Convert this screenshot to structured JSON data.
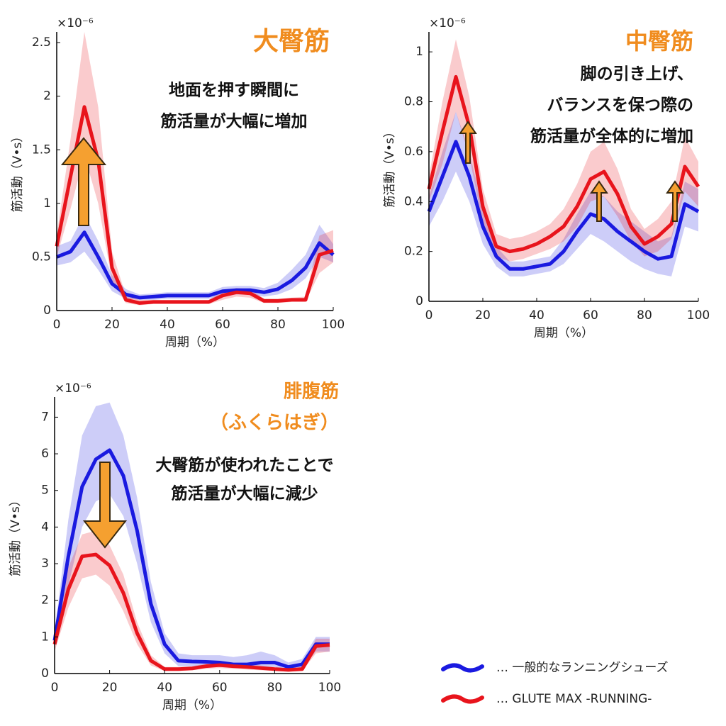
{
  "chart_data": [
    {
      "type": "line",
      "title": "大臀筋",
      "annotations": [
        "地面を押す瞬間に",
        "筋活量が大幅に増加"
      ],
      "x_label": "周期（%）",
      "y_label": "筋活動（V•s）",
      "y_exponent": "×10⁻⁶",
      "x": [
        0,
        5,
        10,
        15,
        20,
        25,
        30,
        35,
        40,
        45,
        50,
        55,
        60,
        65,
        70,
        75,
        80,
        85,
        90,
        95,
        100
      ],
      "xlim": [
        0,
        100
      ],
      "xticks": [
        0,
        20,
        40,
        60,
        80,
        100
      ],
      "ylim": [
        0,
        2.6
      ],
      "yticks": [
        0,
        0.5,
        1,
        1.5,
        2,
        2.5
      ],
      "series": [
        {
          "name": "… 一般的なランニングシューズ",
          "color": "#1a1ae0",
          "values": [
            0.5,
            0.55,
            0.73,
            0.5,
            0.25,
            0.15,
            0.12,
            0.13,
            0.14,
            0.14,
            0.14,
            0.14,
            0.18,
            0.19,
            0.19,
            0.17,
            0.2,
            0.28,
            0.4,
            0.63,
            0.52
          ],
          "lower": [
            0.42,
            0.45,
            0.55,
            0.38,
            0.18,
            0.11,
            0.1,
            0.1,
            0.11,
            0.11,
            0.11,
            0.11,
            0.14,
            0.15,
            0.15,
            0.13,
            0.15,
            0.2,
            0.3,
            0.5,
            0.45
          ],
          "upper": [
            0.6,
            0.65,
            0.9,
            0.65,
            0.33,
            0.2,
            0.15,
            0.16,
            0.17,
            0.17,
            0.17,
            0.17,
            0.22,
            0.23,
            0.23,
            0.21,
            0.26,
            0.38,
            0.52,
            0.8,
            0.62
          ]
        },
        {
          "name": "… GLUTE MAX -RUNNING-",
          "color": "#e8141c",
          "values": [
            0.6,
            1.25,
            1.9,
            1.4,
            0.4,
            0.1,
            0.07,
            0.08,
            0.08,
            0.08,
            0.08,
            0.08,
            0.14,
            0.17,
            0.16,
            0.09,
            0.09,
            0.1,
            0.1,
            0.52,
            0.56
          ],
          "lower": [
            0.5,
            0.95,
            1.45,
            1.0,
            0.28,
            0.07,
            0.05,
            0.06,
            0.06,
            0.06,
            0.06,
            0.06,
            0.1,
            0.13,
            0.12,
            0.07,
            0.07,
            0.08,
            0.08,
            0.35,
            0.45
          ],
          "upper": [
            0.7,
            1.6,
            2.6,
            1.9,
            0.55,
            0.14,
            0.1,
            0.1,
            0.1,
            0.1,
            0.1,
            0.1,
            0.18,
            0.21,
            0.2,
            0.11,
            0.11,
            0.12,
            0.13,
            0.7,
            0.75
          ]
        }
      ]
    },
    {
      "type": "line",
      "title": "中臀筋",
      "annotations": [
        "脚の引き上げ、",
        "バランスを保つ際の",
        "筋活量が全体的に増加"
      ],
      "x_label": "周期（%）",
      "y_label": "筋活動（V•s）",
      "y_exponent": "×10⁻⁶",
      "x": [
        0,
        5,
        10,
        15,
        20,
        25,
        30,
        35,
        40,
        45,
        50,
        55,
        60,
        65,
        70,
        75,
        80,
        85,
        90,
        95,
        100
      ],
      "xlim": [
        0,
        100
      ],
      "xticks": [
        0,
        20,
        40,
        60,
        80,
        100
      ],
      "ylim": [
        0,
        1.08
      ],
      "yticks": [
        0,
        0.2,
        0.4,
        0.6,
        0.8,
        1
      ],
      "series": [
        {
          "color": "#1a1ae0",
          "values": [
            0.36,
            0.5,
            0.64,
            0.5,
            0.3,
            0.18,
            0.13,
            0.13,
            0.14,
            0.15,
            0.2,
            0.28,
            0.35,
            0.33,
            0.28,
            0.24,
            0.2,
            0.17,
            0.18,
            0.39,
            0.36
          ],
          "lower": [
            0.3,
            0.4,
            0.52,
            0.4,
            0.23,
            0.14,
            0.1,
            0.1,
            0.11,
            0.12,
            0.15,
            0.21,
            0.27,
            0.24,
            0.2,
            0.16,
            0.13,
            0.11,
            0.1,
            0.3,
            0.28
          ],
          "upper": [
            0.42,
            0.6,
            0.76,
            0.6,
            0.37,
            0.22,
            0.16,
            0.16,
            0.17,
            0.18,
            0.25,
            0.35,
            0.44,
            0.42,
            0.36,
            0.32,
            0.28,
            0.24,
            0.26,
            0.48,
            0.45
          ]
        },
        {
          "color": "#e8141c",
          "values": [
            0.45,
            0.68,
            0.9,
            0.7,
            0.38,
            0.22,
            0.2,
            0.21,
            0.23,
            0.26,
            0.3,
            0.38,
            0.49,
            0.52,
            0.43,
            0.3,
            0.23,
            0.26,
            0.31,
            0.54,
            0.46
          ],
          "lower": [
            0.4,
            0.55,
            0.76,
            0.58,
            0.31,
            0.18,
            0.16,
            0.17,
            0.19,
            0.21,
            0.24,
            0.3,
            0.4,
            0.42,
            0.34,
            0.24,
            0.18,
            0.2,
            0.25,
            0.44,
            0.38
          ],
          "upper": [
            0.5,
            0.8,
            1.05,
            0.82,
            0.45,
            0.27,
            0.25,
            0.26,
            0.28,
            0.31,
            0.37,
            0.47,
            0.6,
            0.64,
            0.53,
            0.37,
            0.29,
            0.33,
            0.4,
            0.66,
            0.56
          ]
        }
      ]
    },
    {
      "type": "line",
      "title": "腓腹筋",
      "subtitle": "（ふくらはぎ）",
      "annotations": [
        "大臀筋が使われたことで",
        "筋活量が大幅に減少"
      ],
      "x_label": "周期（%）",
      "y_label": "筋活動（V•s）",
      "y_exponent": "×10⁻⁶",
      "x": [
        0,
        5,
        10,
        15,
        20,
        25,
        30,
        35,
        40,
        45,
        50,
        55,
        60,
        65,
        70,
        75,
        80,
        85,
        90,
        95,
        100
      ],
      "xlim": [
        0,
        100
      ],
      "xticks": [
        0,
        20,
        40,
        60,
        80,
        100
      ],
      "ylim": [
        0,
        7.55
      ],
      "yticks": [
        0,
        1,
        2,
        3,
        4,
        5,
        6,
        7
      ],
      "series": [
        {
          "color": "#1a1ae0",
          "values": [
            0.9,
            3.2,
            5.1,
            5.85,
            6.1,
            5.4,
            3.9,
            1.9,
            0.8,
            0.35,
            0.33,
            0.32,
            0.3,
            0.25,
            0.25,
            0.3,
            0.3,
            0.18,
            0.25,
            0.8,
            0.8
          ],
          "lower": [
            0.7,
            2.4,
            4.0,
            4.7,
            4.9,
            4.3,
            3.0,
            1.4,
            0.55,
            0.2,
            0.2,
            0.2,
            0.18,
            0.15,
            0.15,
            0.18,
            0.18,
            0.1,
            0.15,
            0.6,
            0.6
          ],
          "upper": [
            1.1,
            4.2,
            6.5,
            7.3,
            7.4,
            6.5,
            4.8,
            2.5,
            1.1,
            0.55,
            0.5,
            0.5,
            0.5,
            0.45,
            0.5,
            0.6,
            0.5,
            0.3,
            0.4,
            1.0,
            1.0
          ]
        },
        {
          "color": "#e8141c",
          "values": [
            0.8,
            2.3,
            3.2,
            3.25,
            2.95,
            2.2,
            1.1,
            0.35,
            0.12,
            0.12,
            0.14,
            0.2,
            0.23,
            0.2,
            0.18,
            0.15,
            0.12,
            0.1,
            0.12,
            0.75,
            0.78
          ],
          "lower": [
            0.6,
            1.8,
            2.6,
            2.7,
            2.4,
            1.7,
            0.8,
            0.22,
            0.07,
            0.07,
            0.09,
            0.13,
            0.15,
            0.13,
            0.11,
            0.09,
            0.07,
            0.05,
            0.07,
            0.55,
            0.6
          ],
          "upper": [
            1.0,
            2.9,
            3.8,
            3.9,
            3.5,
            2.7,
            1.4,
            0.5,
            0.18,
            0.18,
            0.2,
            0.27,
            0.3,
            0.28,
            0.26,
            0.22,
            0.18,
            0.15,
            0.18,
            0.95,
            0.95
          ]
        }
      ]
    }
  ]
}
